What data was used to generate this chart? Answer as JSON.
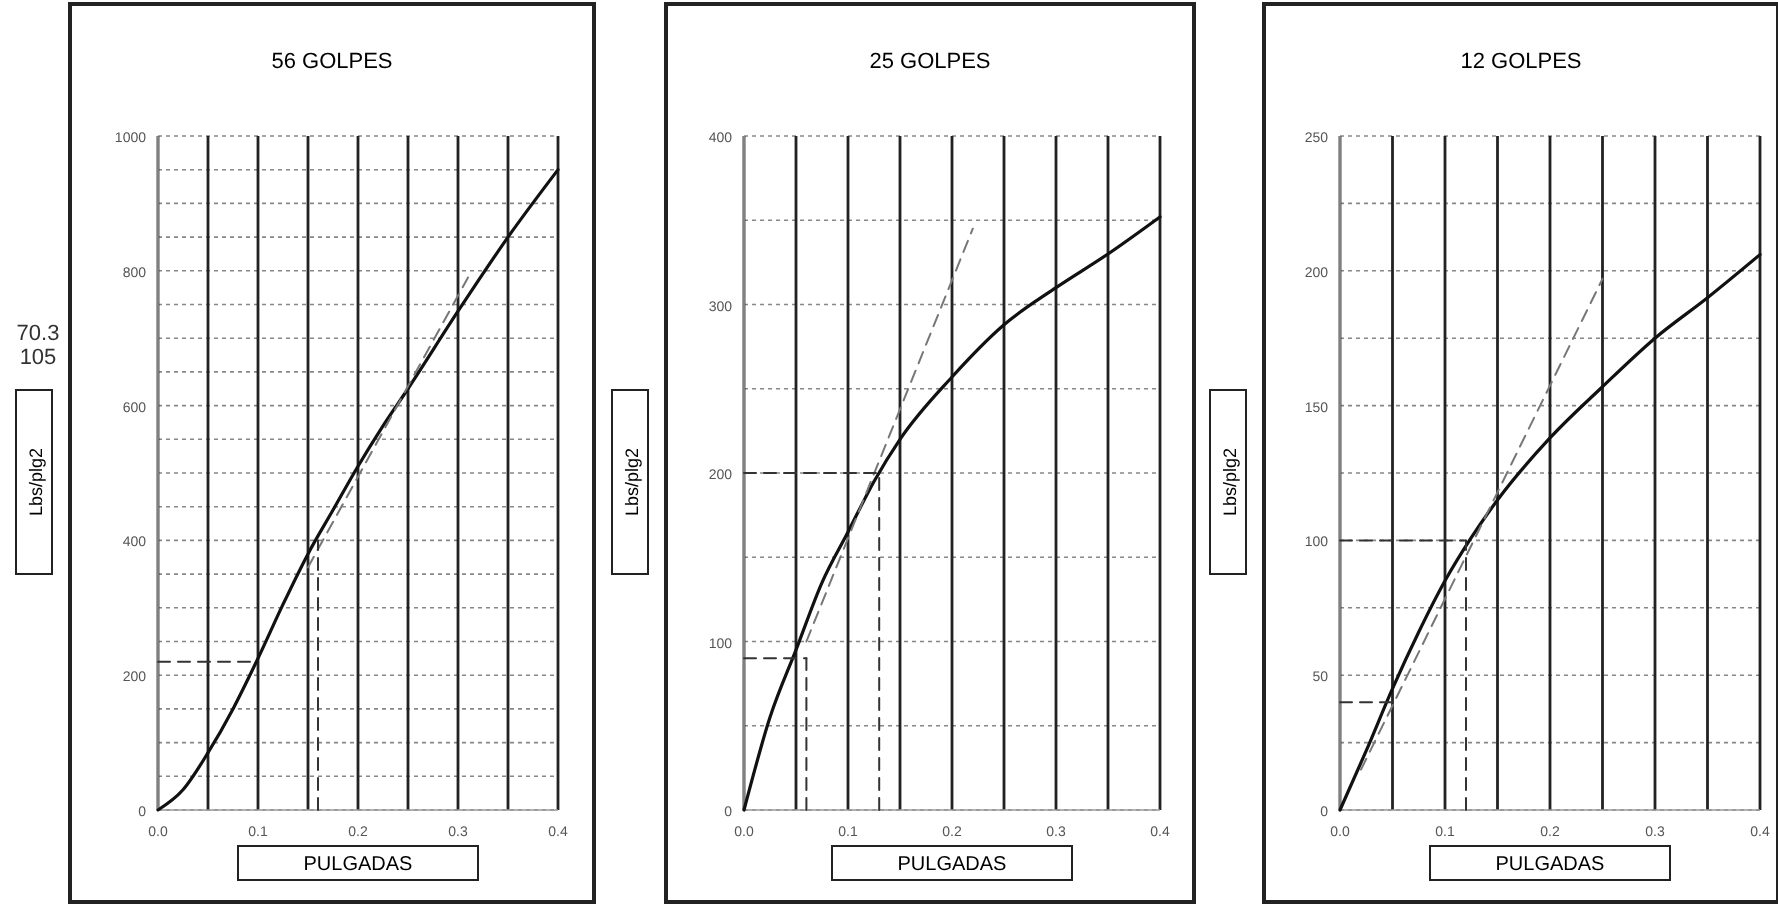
{
  "chart_data": [
    {
      "type": "line",
      "title": "56 GOLPES",
      "xlabel": "PULGADAS",
      "ylabel": "Lbs/plg2",
      "annotations": [
        "70.3",
        "105"
      ],
      "xlim": [
        0,
        0.4
      ],
      "ylim": [
        0,
        1000
      ],
      "xticks": [
        {
          "value": 0,
          "label": "0.0"
        },
        {
          "value": 0.05,
          "label": null
        },
        0.1,
        {
          "value": 0.15,
          "label": null
        },
        0.2,
        {
          "value": 0.25,
          "label": null
        },
        0.3,
        {
          "value": 0.35,
          "label": null
        },
        0.4
      ],
      "yticks": [
        0,
        {
          "value": 50,
          "label": null
        },
        {
          "value": 100,
          "label": null
        },
        {
          "value": 150,
          "label": null
        },
        200,
        {
          "value": 250,
          "label": null
        },
        {
          "value": 300,
          "label": null
        },
        {
          "value": 350,
          "label": null
        },
        400,
        {
          "value": 450,
          "label": null
        },
        {
          "value": 500,
          "label": null
        },
        {
          "value": 550,
          "label": null
        },
        600,
        {
          "value": 650,
          "label": null
        },
        {
          "value": 700,
          "label": null
        },
        {
          "value": 750,
          "label": null
        },
        800,
        {
          "value": 850,
          "label": null
        },
        {
          "value": 900,
          "label": null
        },
        {
          "value": 950,
          "label": null
        },
        1000
      ],
      "grid": true,
      "series": [
        {
          "color": "#111111",
          "line_style": "solid",
          "x": [
            0,
            0.025,
            0.05,
            0.075,
            0.1,
            0.125,
            0.15,
            0.175,
            0.2,
            0.225,
            0.25,
            0.3,
            0.35,
            0.4
          ],
          "values": [
            0,
            30,
            85,
            150,
            225,
            305,
            380,
            445,
            510,
            570,
            625,
            740,
            850,
            950
          ]
        },
        {
          "color": "#777777",
          "line_style": "dashed",
          "x": [
            0.15,
            0.31
          ],
          "values": [
            360,
            790
          ]
        },
        {
          "color": "#333333",
          "line_style": "dashed",
          "x": [
            0,
            0.1
          ],
          "values": [
            220,
            220
          ]
        },
        {
          "color": "#333333",
          "line_style": "dashed",
          "x": [
            0.16,
            0.16
          ],
          "values": [
            0,
            400
          ]
        }
      ]
    },
    {
      "type": "line",
      "title": "25 GOLPES",
      "xlabel": "PULGADAS",
      "ylabel": "Lbs/plg2",
      "xlim": [
        0,
        0.4
      ],
      "ylim": [
        0,
        400
      ],
      "xticks": [
        {
          "value": 0,
          "label": "0.0"
        },
        {
          "value": 0.05,
          "label": null
        },
        0.1,
        {
          "value": 0.15,
          "label": null
        },
        0.2,
        {
          "value": 0.25,
          "label": null
        },
        0.3,
        {
          "value": 0.35,
          "label": null
        },
        0.4
      ],
      "yticks": [
        0,
        {
          "value": 50,
          "label": null
        },
        100,
        {
          "value": 150,
          "label": null
        },
        200,
        {
          "value": 250,
          "label": null
        },
        300,
        {
          "value": 350,
          "label": null
        },
        400
      ],
      "grid": true,
      "series": [
        {
          "color": "#111111",
          "line_style": "solid",
          "x": [
            0,
            0.025,
            0.05,
            0.075,
            0.1,
            0.125,
            0.15,
            0.2,
            0.25,
            0.3,
            0.35,
            0.4
          ],
          "values": [
            0,
            55,
            95,
            135,
            165,
            195,
            220,
            257,
            288,
            310,
            330,
            352
          ]
        },
        {
          "color": "#777777",
          "line_style": "dashed",
          "x": [
            0.06,
            0.22
          ],
          "values": [
            100,
            345
          ]
        },
        {
          "color": "#333333",
          "line_style": "dashed",
          "x": [
            0,
            0.06
          ],
          "values": [
            90,
            90
          ]
        },
        {
          "color": "#333333",
          "line_style": "dashed",
          "x": [
            0.06,
            0.06
          ],
          "values": [
            0,
            90
          ]
        },
        {
          "color": "#333333",
          "line_style": "dashed",
          "x": [
            0,
            0.13
          ],
          "values": [
            200,
            200
          ]
        },
        {
          "color": "#333333",
          "line_style": "dashed",
          "x": [
            0.13,
            0.13
          ],
          "values": [
            0,
            200
          ]
        }
      ]
    },
    {
      "type": "line",
      "title": "12 GOLPES",
      "xlabel": "PULGADAS",
      "ylabel": "Lbs/plg2",
      "xlim": [
        0,
        0.4
      ],
      "ylim": [
        0,
        250
      ],
      "xticks": [
        {
          "value": 0,
          "label": "0.0"
        },
        {
          "value": 0.05,
          "label": null
        },
        0.1,
        {
          "value": 0.15,
          "label": null
        },
        0.2,
        {
          "value": 0.25,
          "label": null
        },
        0.3,
        {
          "value": 0.35,
          "label": null
        },
        0.4
      ],
      "yticks": [
        0,
        {
          "value": 25,
          "label": null
        },
        50,
        {
          "value": 75,
          "label": null
        },
        100,
        {
          "value": 125,
          "label": null
        },
        150,
        {
          "value": 175,
          "label": null
        },
        200,
        {
          "value": 225,
          "label": null
        },
        250
      ],
      "grid": true,
      "series": [
        {
          "color": "#111111",
          "line_style": "solid",
          "x": [
            0,
            0.025,
            0.05,
            0.075,
            0.1,
            0.125,
            0.15,
            0.2,
            0.25,
            0.3,
            0.35,
            0.4
          ],
          "values": [
            0,
            22,
            45,
            66,
            85,
            101,
            115,
            138,
            157,
            175,
            190,
            206
          ]
        },
        {
          "color": "#777777",
          "line_style": "dashed",
          "x": [
            0.02,
            0.25
          ],
          "values": [
            15,
            197
          ]
        },
        {
          "color": "#333333",
          "line_style": "dashed",
          "x": [
            0,
            0.05
          ],
          "values": [
            40,
            40
          ]
        },
        {
          "color": "#333333",
          "line_style": "dashed",
          "x": [
            0,
            0.12
          ],
          "values": [
            100,
            100
          ]
        },
        {
          "color": "#333333",
          "line_style": "dashed",
          "x": [
            0.12,
            0.12
          ],
          "values": [
            0,
            100
          ]
        }
      ]
    }
  ]
}
